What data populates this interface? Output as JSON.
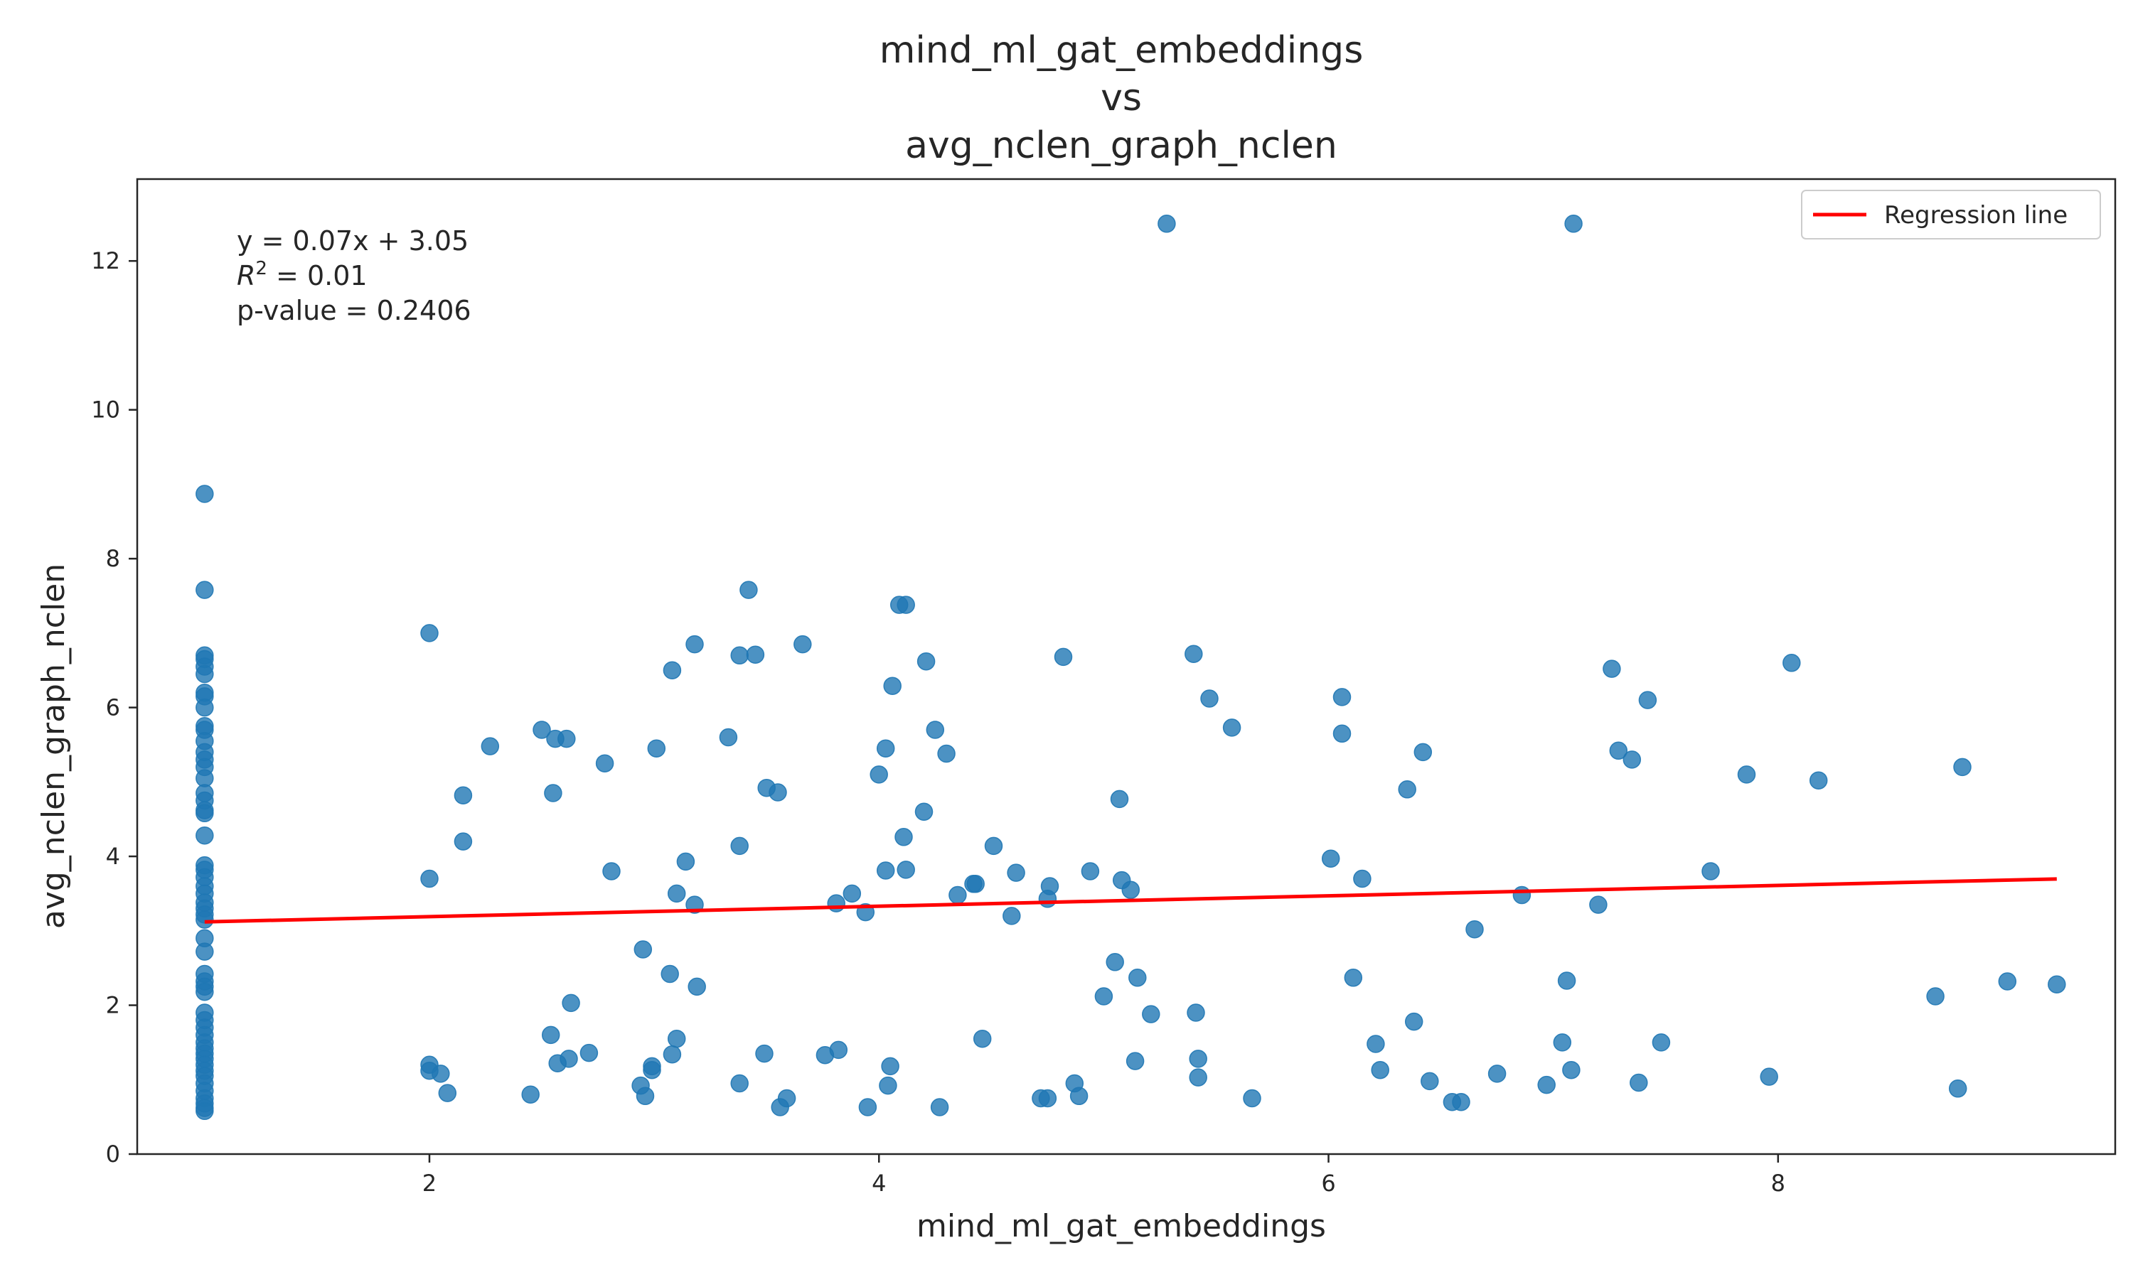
{
  "chart_data": {
    "type": "scatter",
    "title_lines": [
      "mind_ml_gat_embeddings",
      "vs",
      "avg_nclen_graph_nclen"
    ],
    "xlabel": "mind_ml_gat_embeddings",
    "ylabel": "avg_nclen_graph_nclen",
    "xlim": [
      0.7,
      9.5
    ],
    "ylim": [
      0,
      13.1
    ],
    "xticks": [
      2,
      4,
      6,
      8
    ],
    "yticks": [
      0,
      2,
      4,
      6,
      8,
      10,
      12
    ],
    "xtick_labels": [
      "2",
      "4",
      "6",
      "8"
    ],
    "ytick_labels": [
      "0",
      "2",
      "4",
      "6",
      "8",
      "10",
      "12"
    ],
    "grid": false,
    "legend": {
      "placement": "top-right",
      "entries": [
        "Regression line"
      ]
    },
    "annotation": {
      "equation": "y = 0.07x + 3.05",
      "r2_value": " = 0.01",
      "pvalue": "p-value = 0.2406"
    },
    "regression": {
      "slope": 0.07,
      "intercept": 3.05,
      "x_range": [
        1.0,
        9.24
      ],
      "color": "#ff0000"
    },
    "point_color": "#1f77b4",
    "points": [
      [
        1,
        8.87
      ],
      [
        1,
        7.58
      ],
      [
        1,
        6.7
      ],
      [
        1,
        6.65
      ],
      [
        1,
        6.55
      ],
      [
        1,
        6.45
      ],
      [
        1,
        6.2
      ],
      [
        1,
        6.15
      ],
      [
        1,
        6.0
      ],
      [
        1,
        5.75
      ],
      [
        1,
        5.7
      ],
      [
        1,
        5.55
      ],
      [
        1,
        5.4
      ],
      [
        1,
        5.3
      ],
      [
        1,
        5.2
      ],
      [
        1,
        5.05
      ],
      [
        1,
        4.85
      ],
      [
        1,
        4.75
      ],
      [
        1,
        4.62
      ],
      [
        1,
        4.58
      ],
      [
        1,
        4.28
      ],
      [
        1,
        3.88
      ],
      [
        1,
        3.82
      ],
      [
        1,
        3.72
      ],
      [
        1,
        3.6
      ],
      [
        1,
        3.5
      ],
      [
        1,
        3.38
      ],
      [
        1,
        3.3
      ],
      [
        1,
        3.22
      ],
      [
        1,
        3.15
      ],
      [
        1,
        2.9
      ],
      [
        1,
        2.72
      ],
      [
        1,
        2.42
      ],
      [
        1,
        2.32
      ],
      [
        1,
        2.25
      ],
      [
        1,
        2.18
      ],
      [
        1,
        1.9
      ],
      [
        1,
        1.8
      ],
      [
        1,
        1.7
      ],
      [
        1,
        1.6
      ],
      [
        1,
        1.5
      ],
      [
        1,
        1.42
      ],
      [
        1,
        1.35
      ],
      [
        1,
        1.28
      ],
      [
        1,
        1.2
      ],
      [
        1,
        1.12
      ],
      [
        1,
        1.05
      ],
      [
        1,
        0.95
      ],
      [
        1,
        0.85
      ],
      [
        1,
        0.75
      ],
      [
        1,
        0.68
      ],
      [
        1,
        0.62
      ],
      [
        1,
        0.58
      ],
      [
        2.0,
        7.0
      ],
      [
        2.0,
        3.7
      ],
      [
        2.0,
        1.2
      ],
      [
        2.0,
        1.12
      ],
      [
        2.05,
        1.08
      ],
      [
        2.08,
        0.82
      ],
      [
        2.15,
        4.82
      ],
      [
        2.15,
        4.2
      ],
      [
        2.27,
        5.48
      ],
      [
        2.45,
        0.8
      ],
      [
        2.5,
        5.7
      ],
      [
        2.54,
        1.6
      ],
      [
        2.55,
        4.85
      ],
      [
        2.56,
        5.58
      ],
      [
        2.57,
        1.22
      ],
      [
        2.61,
        5.58
      ],
      [
        2.62,
        1.28
      ],
      [
        2.63,
        2.03
      ],
      [
        2.71,
        1.36
      ],
      [
        2.78,
        5.25
      ],
      [
        2.81,
        3.8
      ],
      [
        2.94,
        0.92
      ],
      [
        2.95,
        2.75
      ],
      [
        2.96,
        0.78
      ],
      [
        2.99,
        1.13
      ],
      [
        2.99,
        1.18
      ],
      [
        3.01,
        5.45
      ],
      [
        3.07,
        2.42
      ],
      [
        3.08,
        6.5
      ],
      [
        3.08,
        1.34
      ],
      [
        3.1,
        3.5
      ],
      [
        3.1,
        1.55
      ],
      [
        3.14,
        3.93
      ],
      [
        3.18,
        6.85
      ],
      [
        3.18,
        3.35
      ],
      [
        3.19,
        2.25
      ],
      [
        3.33,
        5.6
      ],
      [
        3.38,
        6.7
      ],
      [
        3.38,
        4.14
      ],
      [
        3.38,
        0.95
      ],
      [
        3.42,
        7.58
      ],
      [
        3.45,
        6.71
      ],
      [
        3.49,
        1.35
      ],
      [
        3.5,
        4.92
      ],
      [
        3.55,
        4.86
      ],
      [
        3.56,
        0.63
      ],
      [
        3.59,
        0.75
      ],
      [
        3.66,
        6.85
      ],
      [
        3.76,
        1.33
      ],
      [
        3.81,
        3.37
      ],
      [
        3.82,
        1.4
      ],
      [
        3.88,
        3.5
      ],
      [
        3.94,
        3.25
      ],
      [
        3.95,
        0.63
      ],
      [
        4.0,
        5.1
      ],
      [
        4.03,
        5.45
      ],
      [
        4.03,
        3.81
      ],
      [
        4.04,
        0.92
      ],
      [
        4.05,
        1.18
      ],
      [
        4.06,
        6.29
      ],
      [
        4.09,
        7.38
      ],
      [
        4.12,
        7.38
      ],
      [
        4.11,
        4.26
      ],
      [
        4.12,
        3.82
      ],
      [
        4.2,
        4.6
      ],
      [
        4.21,
        6.62
      ],
      [
        4.25,
        5.7
      ],
      [
        4.27,
        0.63
      ],
      [
        4.3,
        5.38
      ],
      [
        4.35,
        3.48
      ],
      [
        4.42,
        3.63
      ],
      [
        4.43,
        3.63
      ],
      [
        4.46,
        1.55
      ],
      [
        4.51,
        4.14
      ],
      [
        4.59,
        3.2
      ],
      [
        4.61,
        3.78
      ],
      [
        4.72,
        0.75
      ],
      [
        4.75,
        0.75
      ],
      [
        4.75,
        3.43
      ],
      [
        4.76,
        3.6
      ],
      [
        4.82,
        6.68
      ],
      [
        4.87,
        0.95
      ],
      [
        4.89,
        0.78
      ],
      [
        4.94,
        3.8
      ],
      [
        5.0,
        2.12
      ],
      [
        5.05,
        2.58
      ],
      [
        5.07,
        4.77
      ],
      [
        5.08,
        3.68
      ],
      [
        5.12,
        3.55
      ],
      [
        5.14,
        1.25
      ],
      [
        5.15,
        2.37
      ],
      [
        5.21,
        1.88
      ],
      [
        5.28,
        12.5
      ],
      [
        5.4,
        6.72
      ],
      [
        5.41,
        1.9
      ],
      [
        5.42,
        1.03
      ],
      [
        5.42,
        1.28
      ],
      [
        5.47,
        6.12
      ],
      [
        5.57,
        5.73
      ],
      [
        5.66,
        0.75
      ],
      [
        6.01,
        3.97
      ],
      [
        6.06,
        6.14
      ],
      [
        6.06,
        5.65
      ],
      [
        6.11,
        2.37
      ],
      [
        6.15,
        3.7
      ],
      [
        6.21,
        1.48
      ],
      [
        6.23,
        1.13
      ],
      [
        6.35,
        4.9
      ],
      [
        6.38,
        1.78
      ],
      [
        6.42,
        5.4
      ],
      [
        6.45,
        0.98
      ],
      [
        6.55,
        0.7
      ],
      [
        6.59,
        0.7
      ],
      [
        6.65,
        3.02
      ],
      [
        6.75,
        1.08
      ],
      [
        6.86,
        3.48
      ],
      [
        6.97,
        0.93
      ],
      [
        7.04,
        1.5
      ],
      [
        7.06,
        2.33
      ],
      [
        7.08,
        1.13
      ],
      [
        7.09,
        12.5
      ],
      [
        7.2,
        3.35
      ],
      [
        7.26,
        6.52
      ],
      [
        7.29,
        5.42
      ],
      [
        7.35,
        5.3
      ],
      [
        7.38,
        0.96
      ],
      [
        7.42,
        6.1
      ],
      [
        7.48,
        1.5
      ],
      [
        7.7,
        3.8
      ],
      [
        7.86,
        5.1
      ],
      [
        7.96,
        1.04
      ],
      [
        8.06,
        6.6
      ],
      [
        8.18,
        5.02
      ],
      [
        8.7,
        2.12
      ],
      [
        8.8,
        0.88
      ],
      [
        8.82,
        5.2
      ],
      [
        9.02,
        2.32
      ],
      [
        9.24,
        2.28
      ]
    ]
  }
}
